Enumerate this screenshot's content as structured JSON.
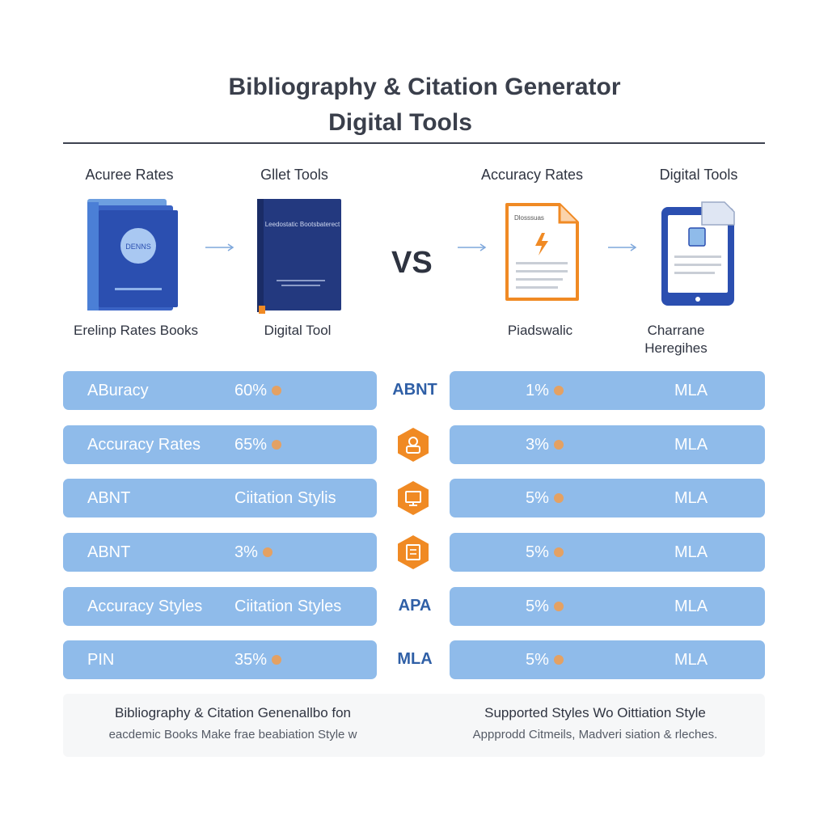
{
  "title": {
    "line1": "Bibliography & Citation Generator",
    "line2": "Digital Tools"
  },
  "columns": [
    {
      "label": "Acuree Rates",
      "caption": "Erelinp Rates Books"
    },
    {
      "label": "Gllet Tools",
      "caption": "Digital Tool"
    },
    {
      "label": "Accuracy Rates",
      "caption": "Piadswalic"
    },
    {
      "label": "Digital Tools",
      "caption": "Charrane Heregihes"
    }
  ],
  "illustrations": {
    "book_left_badge": "DENNS",
    "book_right_title": "Leedostatic Bootsbaterect",
    "document_title": "Dlosssuas"
  },
  "vs": "VS",
  "rows": [
    {
      "left_a": "ABuracy",
      "left_b": "60%",
      "mid_type": "text",
      "mid": "ABNT",
      "right_a": "1%",
      "right_b": "MLA"
    },
    {
      "left_a": "Accuracy Rates",
      "left_b": "65%",
      "mid_type": "icon",
      "mid": "person-hex-icon",
      "right_a": "3%",
      "right_b": "MLA"
    },
    {
      "left_a": "ABNT",
      "left_b": "Ciitation Stylis",
      "mid_type": "icon",
      "mid": "monitor-hex-icon",
      "right_a": "5%",
      "right_b": "MLA"
    },
    {
      "left_a": "ABNT",
      "left_b": "3%",
      "mid_type": "icon",
      "mid": "document-hex-icon",
      "right_a": "5%",
      "right_b": "MLA"
    },
    {
      "left_a": "Accuracy Styles",
      "left_b": "Ciitation Styles",
      "mid_type": "text",
      "mid": "APA",
      "right_a": "5%",
      "right_b": "MLA"
    },
    {
      "left_a": "PIN",
      "left_b": "35%",
      "mid_type": "text",
      "mid": "MLA",
      "right_a": "5%",
      "right_b": "MLA"
    }
  ],
  "footer": {
    "left_title": "Bibliography & Citation Genenallbo fon",
    "left_sub": "eacdemic Books Make frae beabiation Style w",
    "right_title": "Supported Styles Wo Oittiation Style",
    "right_sub": "Appprodd Citmeils, Madveri siation & rleches."
  },
  "colors": {
    "row_bg": "#8fbbea",
    "accent_orange": "#f08a24",
    "book_blue": "#2b4fb0",
    "navy": "#23397f",
    "mid_text": "#2f5fa6"
  }
}
